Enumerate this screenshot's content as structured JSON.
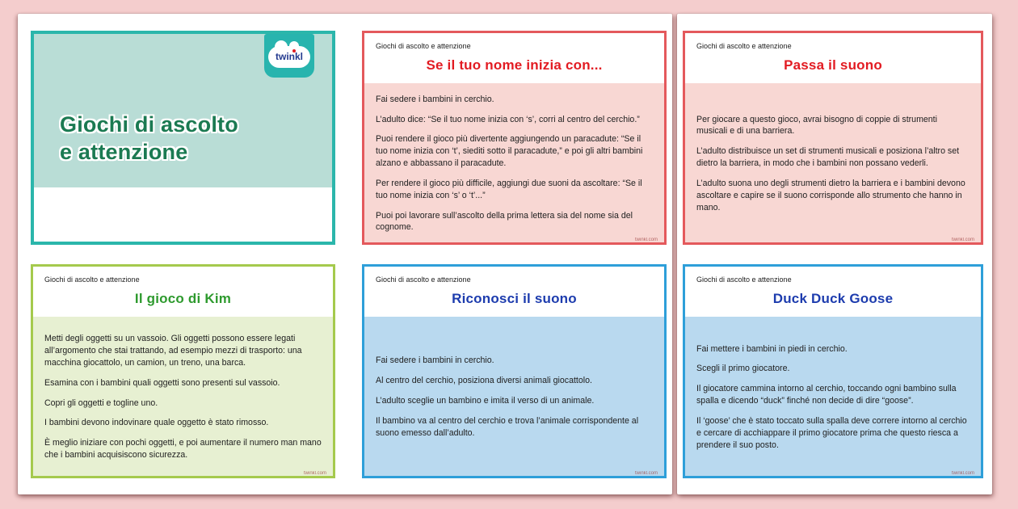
{
  "background_color": "#f4cdcd",
  "series_header": "Giochi di ascolto e attenzione",
  "watermark": "twinkl.com",
  "cover": {
    "title_line1": "Giochi di ascolto",
    "title_line2": "e attenzione",
    "logo_text": "twinkl"
  },
  "colors": {
    "teal_border": "#2bb6ab",
    "teal_fill": "#b9ddd6",
    "cover_title_green": "#1b7a52",
    "red_border": "#e4595c",
    "red_fill": "#f8d7d3",
    "red_title": "#e21b22",
    "green_border": "#a5ca4d",
    "green_fill": "#e7f0d2",
    "green_title": "#2e9a2e",
    "blue_border": "#2e9fd9",
    "blue_fill": "#b9d9ef",
    "blue_title": "#1d3cae"
  },
  "cards": [
    {
      "title": "Se il tuo nome inizia con...",
      "theme": "red",
      "paragraphs": [
        "Fai sedere i bambini in cerchio.",
        "L’adulto dice: “Se il tuo nome inizia con ‘s’, corri al centro del cerchio.”",
        "Puoi rendere il gioco più divertente aggiungendo un paracadute: “Se il tuo nome inizia con ‘t’, siediti sotto il paracadute,” e poi gli altri bambini alzano e abbassano il paracadute.",
        "Per rendere il gioco più difficile, aggiungi due suoni da ascoltare: “Se il tuo nome inizia con ‘s’ o ‘t’...”",
        "Puoi poi lavorare sull’ascolto della prima lettera sia del nome sia del cognome."
      ]
    },
    {
      "title": "Passa il suono",
      "theme": "red",
      "paragraphs": [
        "Per giocare a questo gioco, avrai bisogno di coppie di strumenti musicali e di una barriera.",
        "L’adulto distribuisce un set di strumenti musicali e posiziona l’altro set dietro la barriera, in modo che i bambini non possano vederli.",
        "L’adulto suona uno degli strumenti dietro la barriera e i bambini devono ascoltare e capire se il suono corrisponde allo strumento che hanno in mano."
      ]
    },
    {
      "title": "Il gioco di Kim",
      "theme": "green",
      "paragraphs": [
        "Metti degli oggetti su un vassoio. Gli oggetti possono essere legati all’argomento che stai trattando, ad esempio mezzi di trasporto: una macchina giocattolo, un camion, un treno, una barca.",
        "Esamina con i bambini quali oggetti sono presenti sul vassoio.",
        "Copri gli oggetti e togline uno.",
        "I bambini devono indovinare quale oggetto è stato rimosso.",
        "È meglio iniziare con pochi oggetti, e poi aumentare il numero man mano che i bambini acquisiscono sicurezza."
      ]
    },
    {
      "title": "Riconosci il suono",
      "theme": "blue",
      "paragraphs": [
        "Fai sedere i bambini in cerchio.",
        "Al centro del cerchio, posiziona diversi animali giocattolo.",
        "L’adulto sceglie un bambino e imita il verso di un animale.",
        "Il bambino va al centro del cerchio e trova l’animale corrispondente al suono emesso dall’adulto."
      ]
    },
    {
      "title": "Duck Duck Goose",
      "theme": "blue",
      "paragraphs": [
        "Fai mettere i bambini in piedi in cerchio.",
        "Scegli il primo giocatore.",
        "Il giocatore cammina intorno al cerchio, toccando ogni bambino sulla spalla e dicendo “duck” finché non decide di dire “goose”.",
        "Il ‘goose’ che è stato toccato sulla spalla deve correre intorno al cerchio e cercare di acchiappare il primo giocatore prima che questo riesca a prendere il suo posto."
      ]
    }
  ]
}
